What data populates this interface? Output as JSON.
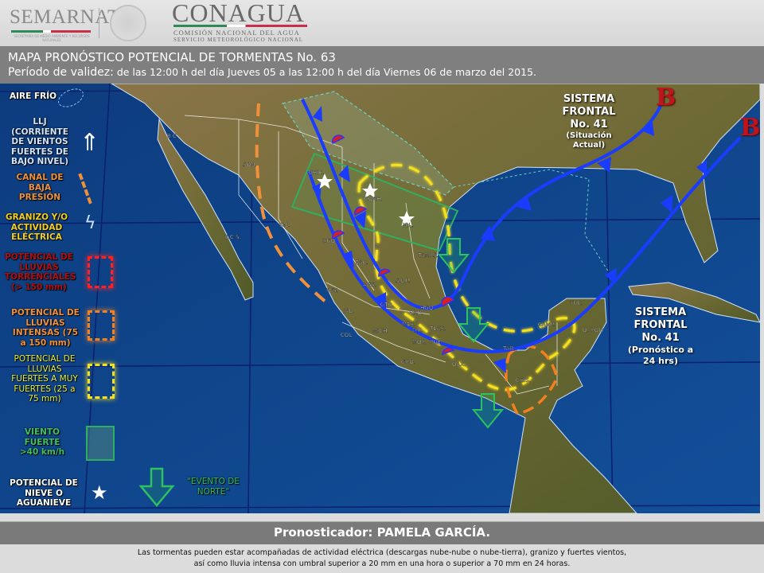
{
  "header": {
    "semarnat_logo": "SEMARNAT",
    "semarnat_subtitle": "SECRETARÍA DE MEDIO AMBIENTE Y RECURSOS NATURALES",
    "conagua_logo": "CONAGUA",
    "conagua_line1": "COMISIÓN NACIONAL DEL AGUA",
    "conagua_line2": "SERVICIO METEOROLÓGICO NACIONAL"
  },
  "title": {
    "main": "MAPA PRONÓSTICO POTENCIAL DE TORMENTAS  No. 63",
    "validity_label": "Período de validez:",
    "validity_text": " de las 12:00 h del día Jueves 05 a las 12:00 h del día Viernes 06 de marzo del 2015."
  },
  "legend": {
    "cold_air": "AIRE FRÍO",
    "llj": "LLJ (CORRIENTE DE VIENTOS FUERTES DE BAJO NIVEL)",
    "trough": "CANAL DE BAJA PRESIÓN",
    "hail": "GRANIZO Y/O ACTIVIDAD ELÉCTRICA",
    "torrential": "POTENCIAL DE LLUVIAS TORRENCIALES (> 150 mm)",
    "intense": "POTENCIAL DE LLUVIAS INTENSAS (75 a 150 mm)",
    "heavy": "POTENCIAL DE LLUVIAS FUERTES A MUY FUERTES (25 a 75 mm)",
    "wind": "VIENTO FUERTE >40 km/h",
    "snow": "POTENCIAL DE NIEVE O AGUANIEVE",
    "norte": "\"EVENTO DE NORTE\""
  },
  "colors": {
    "ocean": "#0f4488",
    "front": "#1a3cff",
    "warm_front": "#d42020",
    "torrential": "#e01010",
    "intense": "#f08020",
    "heavy": "#f5e020",
    "wind": "#22aa55",
    "low_pressure": "#c0141c"
  },
  "map": {
    "states": [
      "B.C.",
      "SON.",
      "B.C.S.",
      "CHIH.",
      "SIN.",
      "COAH.",
      "N.L.",
      "DGO.",
      "ZAC.",
      "TAMPS.",
      "S.L.P.",
      "NAY.",
      "AGS.",
      "GTO.",
      "JAL.",
      "HGO.",
      "QRO.",
      "MICH.",
      "COL.",
      "MEX.",
      "D.F.",
      "TLAX.",
      "MOR.",
      "PUE.",
      "GRO.",
      "OAX.",
      "TAB.",
      "CHIS.",
      "CAMP.",
      "YUC.",
      "Q. ROO"
    ],
    "low_pressure_symbol": "B",
    "front_current": {
      "title": "SISTEMA FRONTAL",
      "number": "No. 41",
      "note": "(Situación Actual)"
    },
    "front_forecast": {
      "title": "SISTEMA FRONTAL",
      "number": "No. 41",
      "note": "(Pronóstico a 24 hrs)"
    }
  },
  "footer": {
    "forecaster": "Pronosticador: PAMELA GARCÍA.",
    "note_line1": "Las tormentas pueden estar acompañadas de actividad eléctrica (descargas nube-nube o nube-tierra), granizo y fuertes vientos,",
    "note_line2": "así como lluvia intensa con umbral superior a 20 mm en una hora o superior a 70 mm en 24 horas."
  }
}
